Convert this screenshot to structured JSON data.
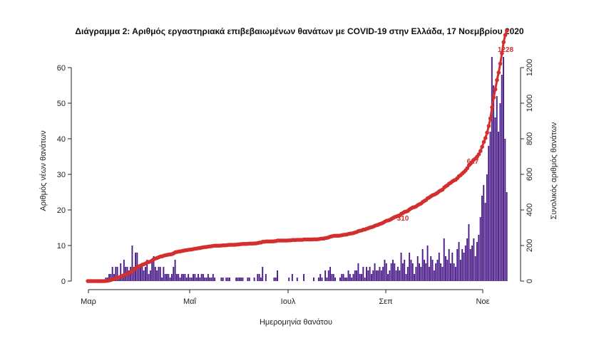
{
  "chart_data": {
    "type": "bar",
    "title": "Διάγραμμα 2: Αριθμός εργαστηριακά επιβεβαιωμένων θανάτων με COVID-19 στην Ελλάδα, 17 Νοεμβρίου 2020",
    "xlabel": "Ημερομηνία θανάτου",
    "ylabel": "Αριθμός νέων θανάτων",
    "y2label": "Συνολικός αριθμός θανάτων",
    "x_ticks": [
      "Μαρ",
      "Μαΐ",
      "Ιουλ",
      "Σεπ",
      "Νοε"
    ],
    "ylim": [
      0,
      65
    ],
    "y_ticks": [
      0,
      10,
      20,
      30,
      40,
      50,
      60
    ],
    "y2lim": [
      0,
      1300
    ],
    "y2_ticks": [
      0,
      200,
      400,
      600,
      800,
      1000,
      1200
    ],
    "annotations": [
      "310",
      "617",
      "1228"
    ],
    "colors": {
      "bars": "#4b1c8a",
      "cumulative": "#d32f2f"
    },
    "series": [
      {
        "kind": "bars",
        "values": [
          0,
          0,
          0,
          0,
          0,
          0,
          0,
          0,
          0,
          0,
          0,
          1,
          1,
          2,
          2,
          4,
          2,
          4,
          4,
          1,
          5,
          2,
          6,
          4,
          4,
          3,
          4,
          10,
          4,
          8,
          8,
          4,
          4,
          5,
          3,
          4,
          6,
          2,
          3,
          6,
          7,
          4,
          3,
          4,
          4,
          1,
          4,
          2,
          2,
          2,
          1,
          2,
          4,
          6,
          2,
          2,
          1,
          2,
          2,
          2,
          1,
          2,
          1,
          1,
          2,
          2,
          1,
          2,
          1,
          2,
          2,
          1,
          1,
          2,
          1,
          1,
          2,
          1,
          0,
          0,
          0,
          1,
          1,
          0,
          1,
          1,
          1,
          0,
          0,
          0,
          1,
          1,
          1,
          1,
          1,
          0,
          0,
          1,
          1,
          0,
          0,
          1,
          0,
          2,
          2,
          1,
          4,
          0,
          2,
          0,
          0,
          0,
          0,
          1,
          1,
          3,
          0,
          0,
          0,
          0,
          0,
          0,
          1,
          0,
          2,
          0,
          0,
          1,
          0,
          0,
          0,
          2,
          0,
          0,
          0,
          0,
          0,
          1,
          0,
          0,
          1,
          2,
          1,
          0,
          3,
          1,
          3,
          4,
          2,
          2,
          1,
          0,
          0,
          1,
          2,
          2,
          1,
          1,
          3,
          2,
          1,
          2,
          3,
          3,
          5,
          2,
          2,
          4,
          1,
          4,
          3,
          4,
          2,
          3,
          5,
          3,
          3,
          4,
          3,
          4,
          6,
          5,
          2,
          3,
          5,
          6,
          5,
          3,
          4,
          3,
          8,
          5,
          6,
          2,
          4,
          8,
          6,
          5,
          2,
          4,
          7,
          5,
          4,
          9,
          6,
          5,
          10,
          4,
          7,
          6,
          3,
          5,
          6,
          8,
          5,
          4,
          12,
          7,
          6,
          9,
          5,
          8,
          5,
          4,
          9,
          11,
          6,
          9,
          8,
          10,
          12,
          16,
          9,
          10,
          12,
          7,
          11,
          13,
          18,
          24,
          27,
          22,
          30,
          38,
          42,
          63,
          55,
          46,
          52,
          42,
          50,
          58,
          63,
          40,
          25
        ]
      },
      {
        "kind": "cumulative_line",
        "values": [
          0,
          0,
          0,
          0,
          0,
          0,
          0,
          0,
          0,
          0,
          0,
          1,
          2,
          4,
          6,
          10,
          12,
          16,
          20,
          21,
          26,
          28,
          34,
          38,
          42,
          45,
          49,
          59,
          63,
          71,
          79,
          83,
          87,
          92,
          95,
          99,
          105,
          107,
          110,
          116,
          123,
          127,
          130,
          134,
          138,
          139,
          143,
          145,
          147,
          149,
          150,
          152,
          156,
          162,
          164,
          166,
          167,
          169,
          171,
          173,
          174,
          176,
          177,
          178,
          180,
          182,
          183,
          185,
          186,
          188,
          190,
          191,
          192,
          194,
          195,
          196,
          198,
          199,
          199,
          199,
          199,
          200,
          201,
          201,
          202,
          203,
          204,
          204,
          204,
          204,
          205,
          206,
          207,
          208,
          209,
          209,
          209,
          210,
          211,
          211,
          211,
          212,
          212,
          214,
          216,
          217,
          221,
          221,
          223,
          223,
          223,
          223,
          223,
          224,
          225,
          228,
          228,
          228,
          228,
          228,
          228,
          228,
          229,
          229,
          231,
          231,
          231,
          232,
          232,
          232,
          232,
          234,
          234,
          234,
          234,
          234,
          234,
          235,
          235,
          235,
          236,
          238,
          239,
          239,
          242,
          243,
          246,
          250,
          252,
          254,
          255,
          255,
          255,
          256,
          258,
          260,
          261,
          262,
          265,
          267,
          268,
          270,
          273,
          276,
          281,
          283,
          285,
          289,
          290,
          294,
          297,
          301,
          303,
          306,
          311,
          314,
          317,
          321,
          324,
          328,
          334,
          339,
          341,
          344,
          349,
          355,
          360,
          363,
          367,
          370,
          378,
          383,
          389,
          391,
          395,
          403,
          409,
          414,
          416,
          420,
          427,
          432,
          436,
          445,
          451,
          456,
          466,
          470,
          477,
          483,
          486,
          491,
          497,
          505,
          510,
          514,
          526,
          533,
          539,
          548,
          553,
          561,
          566,
          570,
          579,
          590,
          596,
          605,
          613,
          623,
          635,
          651,
          660,
          670,
          682,
          689,
          700,
          713,
          731,
          755,
          782,
          804,
          834,
          872,
          914,
          977,
          1032,
          1078,
          1130,
          1172,
          1222,
          1280,
          1343,
          1383,
          1408
        ]
      }
    ]
  }
}
